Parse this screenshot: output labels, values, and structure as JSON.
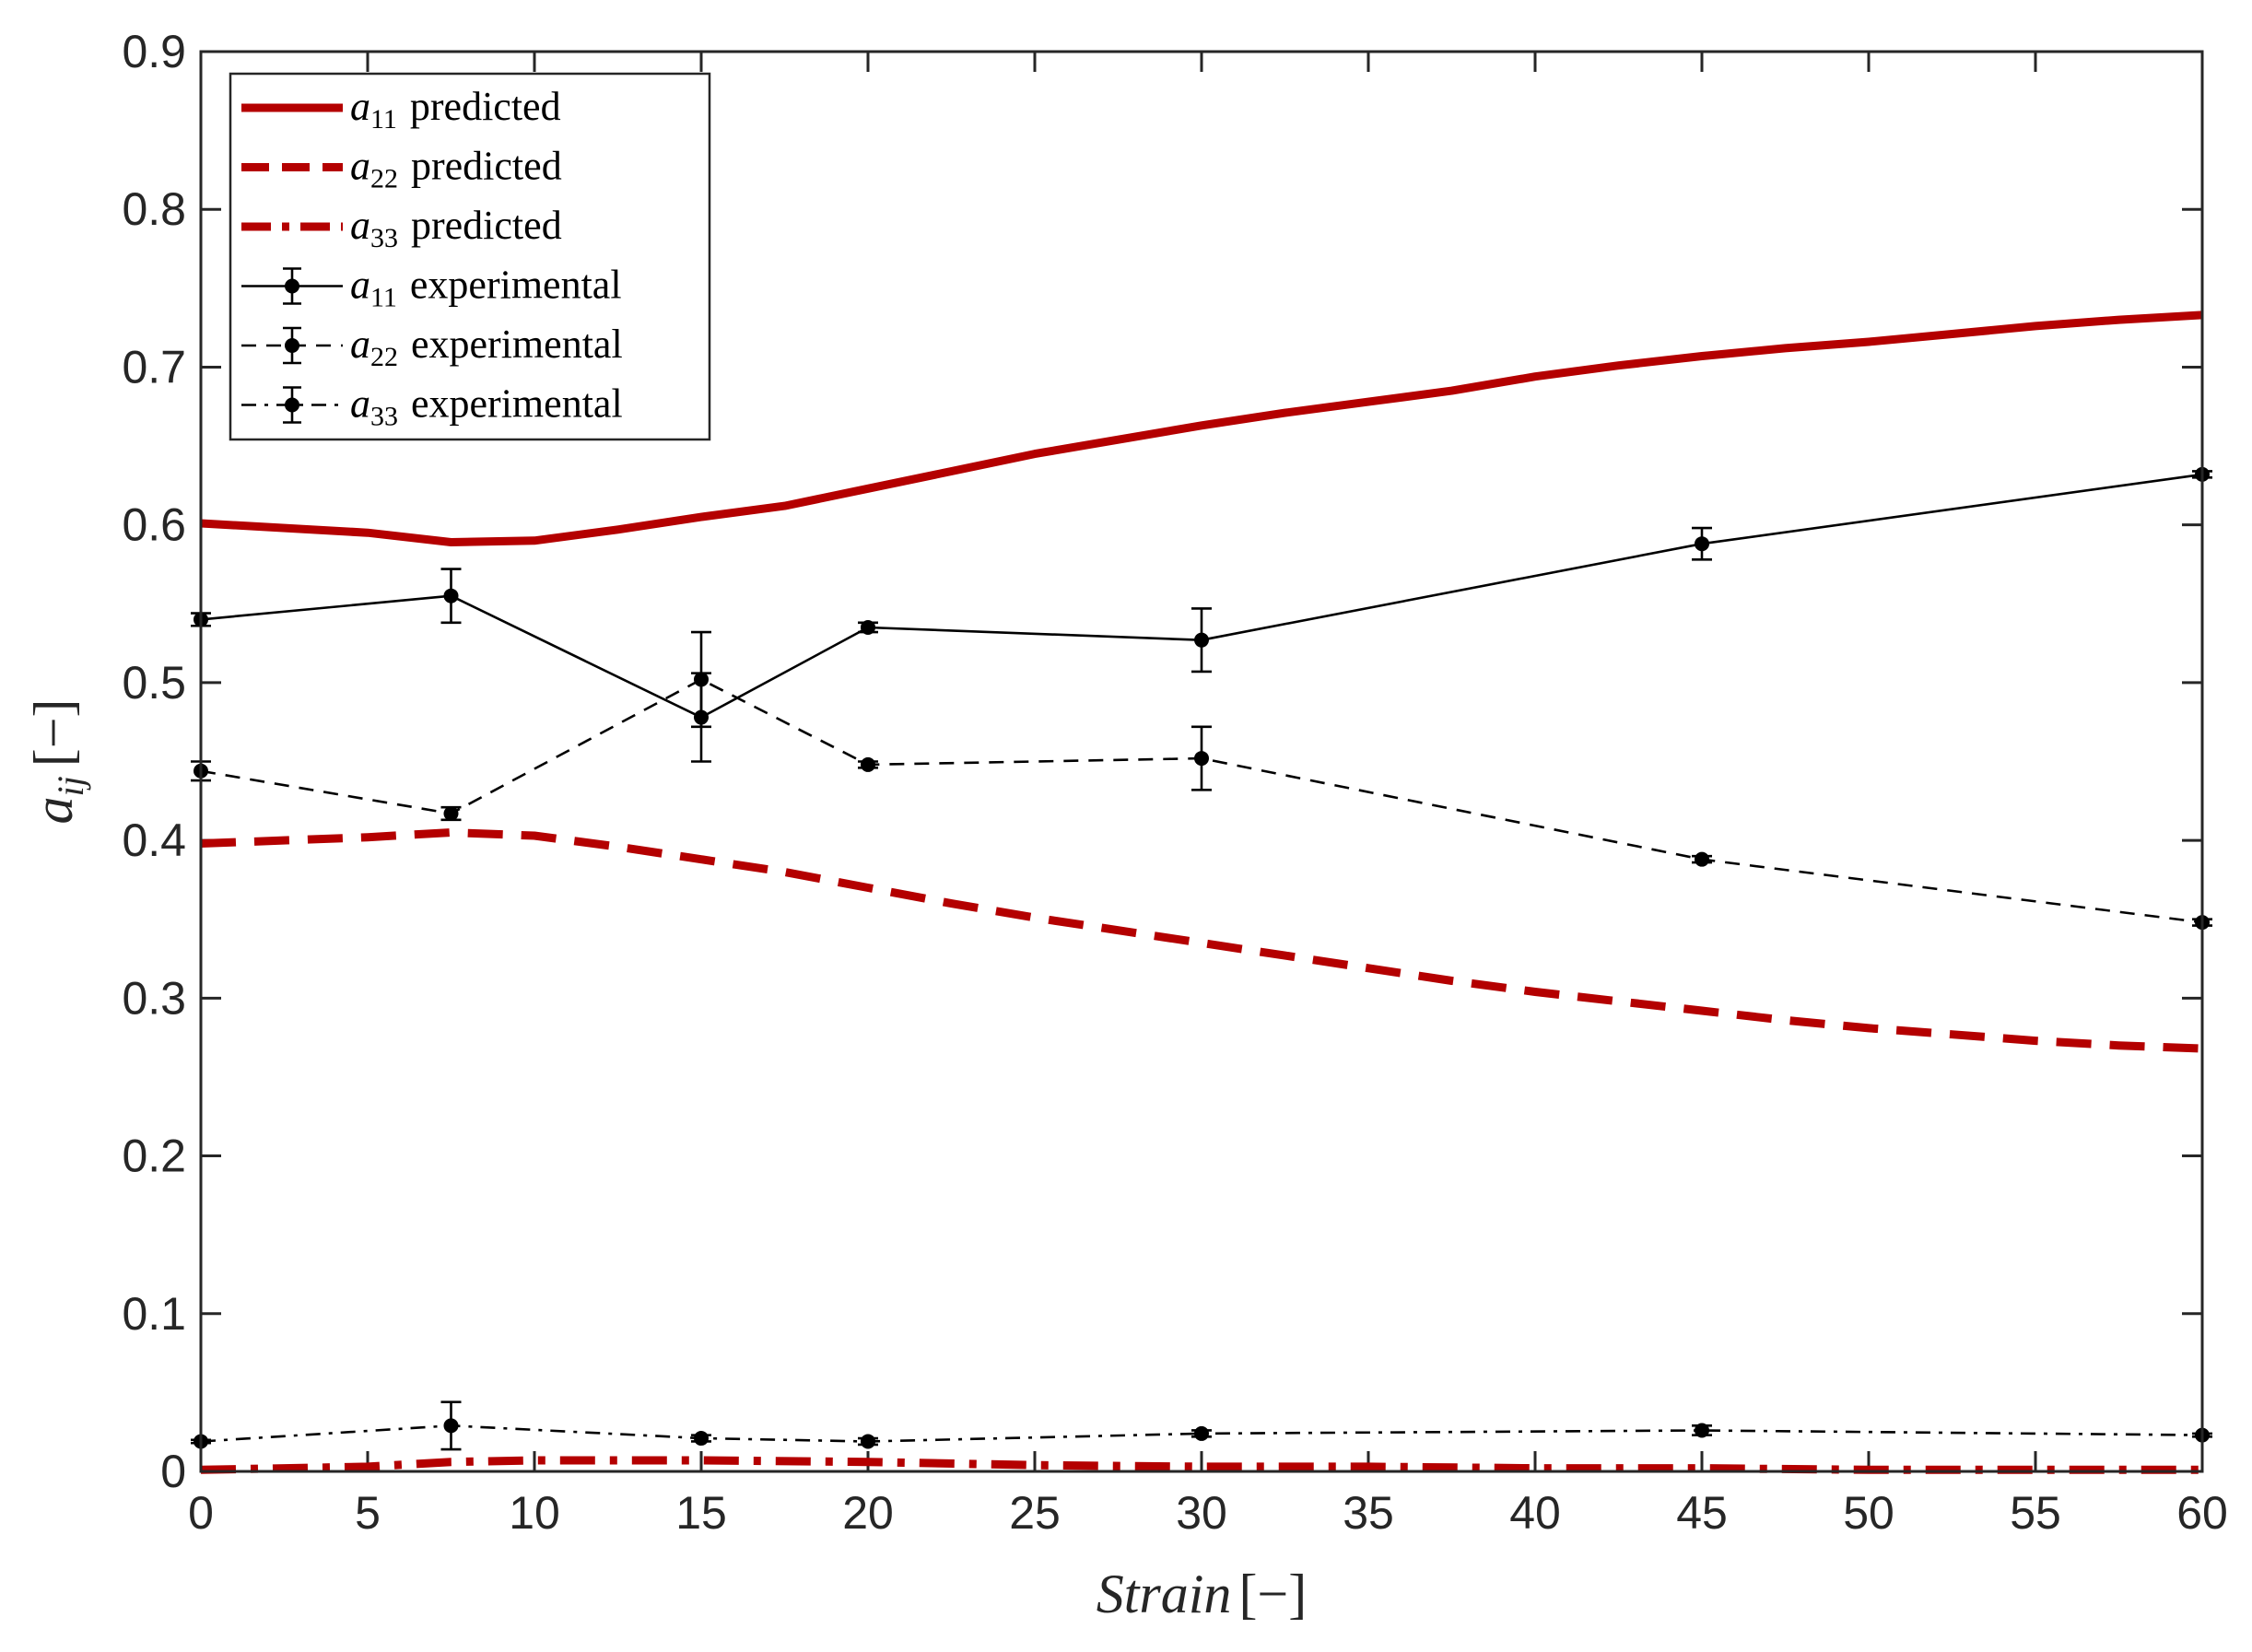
{
  "chart_data": {
    "type": "line",
    "title": "",
    "xlabel": {
      "symbol": "Strain",
      "unit": "[−]"
    },
    "ylabel": {
      "symbol": "a",
      "subscript": "ij",
      "unit": "[−]"
    },
    "xlim": [
      0,
      60
    ],
    "ylim": [
      0,
      0.9
    ],
    "x_ticks": [
      "0",
      "5",
      "10",
      "15",
      "20",
      "25",
      "30",
      "35",
      "40",
      "45",
      "50",
      "55",
      "60"
    ],
    "y_ticks": [
      "0",
      "0.1",
      "0.2",
      "0.3",
      "0.4",
      "0.5",
      "0.6",
      "0.7",
      "0.8",
      "0.9"
    ],
    "x_tick_values": [
      0,
      5,
      10,
      15,
      20,
      25,
      30,
      35,
      40,
      45,
      50,
      55,
      60
    ],
    "y_tick_values": [
      0,
      0.1,
      0.2,
      0.3,
      0.4,
      0.5,
      0.6,
      0.7,
      0.8,
      0.9
    ],
    "grid": false,
    "legend_position": "top-left",
    "series": [
      {
        "name": "a11 predicted",
        "symbol": "a",
        "subscript": "11",
        "label": "predicted",
        "style": "solid",
        "color": "#B40000",
        "x": [
          0,
          5,
          7.5,
          10,
          12.5,
          15,
          17.5,
          20,
          22.5,
          25,
          27.5,
          30,
          32.5,
          35,
          37.5,
          40,
          42.5,
          45,
          47.5,
          50,
          52.5,
          55,
          57.5,
          60
        ],
        "y": [
          0.601,
          0.595,
          0.589,
          0.59,
          0.597,
          0.605,
          0.612,
          0.623,
          0.634,
          0.645,
          0.654,
          0.663,
          0.671,
          0.678,
          0.685,
          0.694,
          0.701,
          0.707,
          0.712,
          0.716,
          0.721,
          0.726,
          0.73,
          0.733
        ]
      },
      {
        "name": "a22 predicted",
        "symbol": "a",
        "subscript": "22",
        "label": "predicted",
        "style": "dashed",
        "color": "#B40000",
        "x": [
          0,
          5,
          7.5,
          10,
          12.5,
          15,
          17.5,
          20,
          22.5,
          25,
          27.5,
          30,
          32.5,
          35,
          37.5,
          40,
          42.5,
          45,
          47.5,
          50,
          52.5,
          55,
          57.5,
          60
        ],
        "y": [
          0.398,
          0.402,
          0.405,
          0.403,
          0.396,
          0.388,
          0.38,
          0.37,
          0.36,
          0.351,
          0.343,
          0.335,
          0.327,
          0.319,
          0.311,
          0.304,
          0.298,
          0.292,
          0.286,
          0.281,
          0.277,
          0.273,
          0.27,
          0.268
        ]
      },
      {
        "name": "a33 predicted",
        "symbol": "a",
        "subscript": "33",
        "label": "predicted",
        "style": "dashdot",
        "color": "#B40000",
        "x": [
          0,
          5,
          7.5,
          10,
          15,
          20,
          25,
          30,
          35,
          40,
          45,
          50,
          55,
          60
        ],
        "y": [
          0.001,
          0.003,
          0.006,
          0.007,
          0.007,
          0.006,
          0.004,
          0.003,
          0.003,
          0.002,
          0.002,
          0.001,
          0.001,
          0.001
        ]
      },
      {
        "name": "a11 experimental",
        "symbol": "a",
        "subscript": "11",
        "label": "experimental",
        "style": "solid",
        "color": "#000000",
        "markers": true,
        "x": [
          0,
          7.5,
          15,
          20,
          30,
          45,
          60
        ],
        "y": [
          0.54,
          0.555,
          0.478,
          0.535,
          0.527,
          0.588,
          0.632
        ],
        "error": [
          0.004,
          0.017,
          0.028,
          0.003,
          0.02,
          0.01,
          0.002
        ]
      },
      {
        "name": "a22 experimental",
        "symbol": "a",
        "subscript": "22",
        "label": "experimental",
        "style": "dashed",
        "color": "#000000",
        "markers": true,
        "x": [
          0,
          7.5,
          15,
          20,
          30,
          45,
          60
        ],
        "y": [
          0.444,
          0.417,
          0.502,
          0.448,
          0.452,
          0.388,
          0.348
        ],
        "error": [
          0.006,
          0.004,
          0.03,
          0.002,
          0.02,
          0.002,
          0.002
        ]
      },
      {
        "name": "a33 experimental",
        "symbol": "a",
        "subscript": "33",
        "label": "experimental",
        "style": "dashdot",
        "color": "#000000",
        "markers": true,
        "x": [
          0,
          7.5,
          15,
          20,
          30,
          45,
          60
        ],
        "y": [
          0.019,
          0.029,
          0.021,
          0.019,
          0.024,
          0.026,
          0.023
        ],
        "error": [
          0.001,
          0.015,
          0.002,
          0.002,
          0.002,
          0.003,
          0.001
        ]
      }
    ]
  }
}
